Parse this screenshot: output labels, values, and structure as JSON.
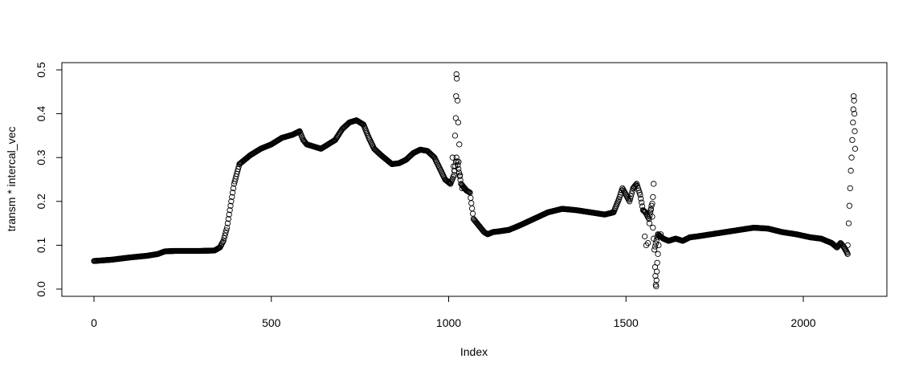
{
  "chart_data": {
    "type": "scatter",
    "title": "",
    "xlabel": "Index",
    "ylabel": "transm * intercal_vec",
    "xlim": [
      0,
      2150
    ],
    "ylim": [
      0,
      0.5
    ],
    "x_ticks": [
      0,
      500,
      1000,
      1500,
      2000
    ],
    "y_ticks": [
      0.0,
      0.1,
      0.2,
      0.3,
      0.4,
      0.5
    ],
    "x_tick_labels": [
      "0",
      "500",
      "1000",
      "1500",
      "2000"
    ],
    "y_tick_labels": [
      "0.0",
      "0.1",
      "0.2",
      "0.3",
      "0.4",
      "0.5"
    ],
    "grid": false,
    "marker": "open-circle",
    "series": [
      {
        "name": "",
        "points": [
          [
            0,
            0.064
          ],
          [
            50,
            0.067
          ],
          [
            100,
            0.072
          ],
          [
            150,
            0.076
          ],
          [
            180,
            0.08
          ],
          [
            200,
            0.086
          ],
          [
            230,
            0.087
          ],
          [
            260,
            0.087
          ],
          [
            300,
            0.087
          ],
          [
            340,
            0.088
          ],
          [
            355,
            0.095
          ],
          [
            365,
            0.11
          ],
          [
            375,
            0.14
          ],
          [
            385,
            0.19
          ],
          [
            395,
            0.24
          ],
          [
            410,
            0.285
          ],
          [
            440,
            0.305
          ],
          [
            470,
            0.32
          ],
          [
            500,
            0.33
          ],
          [
            530,
            0.345
          ],
          [
            560,
            0.352
          ],
          [
            580,
            0.36
          ],
          [
            590,
            0.34
          ],
          [
            600,
            0.33
          ],
          [
            620,
            0.325
          ],
          [
            640,
            0.32
          ],
          [
            660,
            0.33
          ],
          [
            680,
            0.34
          ],
          [
            700,
            0.365
          ],
          [
            720,
            0.38
          ],
          [
            740,
            0.385
          ],
          [
            760,
            0.375
          ],
          [
            775,
            0.345
          ],
          [
            790,
            0.32
          ],
          [
            810,
            0.305
          ],
          [
            840,
            0.285
          ],
          [
            860,
            0.287
          ],
          [
            880,
            0.295
          ],
          [
            900,
            0.31
          ],
          [
            920,
            0.318
          ],
          [
            940,
            0.315
          ],
          [
            960,
            0.3
          ],
          [
            975,
            0.275
          ],
          [
            990,
            0.25
          ],
          [
            1005,
            0.24
          ],
          [
            1015,
            0.26
          ],
          [
            1022,
            0.3
          ],
          [
            1035,
            0.24
          ],
          [
            1050,
            0.225
          ],
          [
            1060,
            0.22
          ],
          [
            1070,
            0.16
          ],
          [
            1080,
            0.15
          ],
          [
            1090,
            0.14
          ],
          [
            1100,
            0.13
          ],
          [
            1110,
            0.125
          ],
          [
            1125,
            0.13
          ],
          [
            1145,
            0.132
          ],
          [
            1170,
            0.135
          ],
          [
            1200,
            0.145
          ],
          [
            1240,
            0.16
          ],
          [
            1280,
            0.175
          ],
          [
            1320,
            0.183
          ],
          [
            1360,
            0.18
          ],
          [
            1400,
            0.175
          ],
          [
            1440,
            0.17
          ],
          [
            1465,
            0.175
          ],
          [
            1480,
            0.205
          ],
          [
            1490,
            0.23
          ],
          [
            1500,
            0.215
          ],
          [
            1510,
            0.2
          ],
          [
            1520,
            0.23
          ],
          [
            1530,
            0.24
          ],
          [
            1540,
            0.215
          ],
          [
            1548,
            0.18
          ],
          [
            1555,
            0.175
          ],
          [
            1565,
            0.16
          ],
          [
            1572,
            0.19
          ],
          [
            1580,
            0.09
          ],
          [
            1590,
            0.125
          ],
          [
            1605,
            0.115
          ],
          [
            1620,
            0.11
          ],
          [
            1640,
            0.115
          ],
          [
            1660,
            0.11
          ],
          [
            1680,
            0.118
          ],
          [
            1700,
            0.12
          ],
          [
            1740,
            0.125
          ],
          [
            1780,
            0.13
          ],
          [
            1820,
            0.135
          ],
          [
            1860,
            0.14
          ],
          [
            1900,
            0.138
          ],
          [
            1940,
            0.13
          ],
          [
            1980,
            0.125
          ],
          [
            2020,
            0.118
          ],
          [
            2050,
            0.115
          ],
          [
            2080,
            0.105
          ],
          [
            2095,
            0.095
          ],
          [
            2105,
            0.105
          ],
          [
            2115,
            0.095
          ],
          [
            2122,
            0.085
          ],
          [
            2125,
            0.08
          ]
        ],
        "scattered_points": [
          [
            1018,
            0.35
          ],
          [
            1020,
            0.39
          ],
          [
            1021,
            0.44
          ],
          [
            1022,
            0.49
          ],
          [
            1023,
            0.48
          ],
          [
            1025,
            0.43
          ],
          [
            1027,
            0.38
          ],
          [
            1030,
            0.33
          ],
          [
            1011,
            0.3
          ],
          [
            1014,
            0.28
          ],
          [
            1016,
            0.27
          ],
          [
            1028,
            0.29
          ],
          [
            1032,
            0.26
          ],
          [
            1038,
            0.23
          ],
          [
            1044,
            0.23
          ],
          [
            1553,
            0.12
          ],
          [
            1557,
            0.1
          ],
          [
            1562,
            0.105
          ],
          [
            1566,
            0.15
          ],
          [
            1570,
            0.18
          ],
          [
            1574,
            0.195
          ],
          [
            1576,
            0.21
          ],
          [
            1578,
            0.24
          ],
          [
            1582,
            0.05
          ],
          [
            1583,
            0.03
          ],
          [
            1584,
            0.01
          ],
          [
            1585,
            0.006
          ],
          [
            1586,
            0.02
          ],
          [
            1587,
            0.04
          ],
          [
            1588,
            0.06
          ],
          [
            1590,
            0.08
          ],
          [
            1592,
            0.1
          ],
          [
            1594,
            0.12
          ],
          [
            1598,
            0.125
          ],
          [
            2125,
            0.1
          ],
          [
            2128,
            0.15
          ],
          [
            2130,
            0.19
          ],
          [
            2132,
            0.23
          ],
          [
            2134,
            0.27
          ],
          [
            2136,
            0.3
          ],
          [
            2138,
            0.34
          ],
          [
            2140,
            0.38
          ],
          [
            2141,
            0.41
          ],
          [
            2142,
            0.44
          ],
          [
            2143,
            0.43
          ],
          [
            2144,
            0.4
          ],
          [
            2145,
            0.36
          ],
          [
            2146,
            0.32
          ]
        ]
      }
    ]
  }
}
